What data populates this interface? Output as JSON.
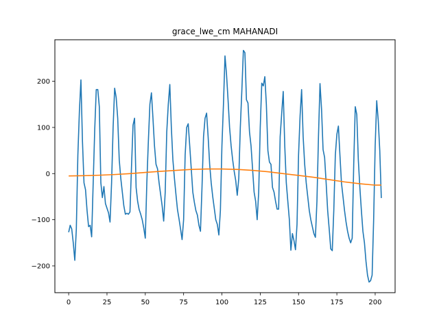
{
  "chart_data": {
    "type": "line",
    "title": "grace_lwe_cm MAHANADI",
    "xlabel": "",
    "ylabel": "",
    "xlim": [
      -9,
      213
    ],
    "ylim": [
      -258,
      290
    ],
    "xticks": [
      0,
      25,
      50,
      75,
      100,
      125,
      150,
      175,
      200
    ],
    "yticks": [
      -200,
      -100,
      0,
      100,
      200
    ],
    "grid": false,
    "legend": "none",
    "series": [
      {
        "color": "#1f77b4",
        "points": [
          [
            0,
            -127
          ],
          [
            1,
            -112
          ],
          [
            2,
            -120
          ],
          [
            3,
            -150
          ],
          [
            4,
            -188
          ],
          [
            5,
            -120
          ],
          [
            6,
            40
          ],
          [
            7,
            135
          ],
          [
            8,
            203
          ],
          [
            9,
            70
          ],
          [
            10,
            -20
          ],
          [
            11,
            -35
          ],
          [
            12,
            -80
          ],
          [
            13,
            -115
          ],
          [
            14,
            -112
          ],
          [
            15,
            -137
          ],
          [
            16,
            -20
          ],
          [
            17,
            95
          ],
          [
            18,
            182
          ],
          [
            19,
            182
          ],
          [
            20,
            145
          ],
          [
            21,
            -20
          ],
          [
            22,
            -52
          ],
          [
            23,
            -28
          ],
          [
            24,
            -65
          ],
          [
            25,
            -75
          ],
          [
            26,
            -85
          ],
          [
            27,
            -105
          ],
          [
            28,
            -20
          ],
          [
            29,
            100
          ],
          [
            30,
            185
          ],
          [
            31,
            165
          ],
          [
            32,
            120
          ],
          [
            33,
            30
          ],
          [
            34,
            -10
          ],
          [
            35,
            -40
          ],
          [
            36,
            -70
          ],
          [
            37,
            -88
          ],
          [
            38,
            -86
          ],
          [
            39,
            -88
          ],
          [
            40,
            -83
          ],
          [
            41,
            15
          ],
          [
            42,
            105
          ],
          [
            43,
            120
          ],
          [
            44,
            -30
          ],
          [
            45,
            -60
          ],
          [
            46,
            -78
          ],
          [
            47,
            -88
          ],
          [
            48,
            -100
          ],
          [
            49,
            -118
          ],
          [
            50,
            -140
          ],
          [
            51,
            -20
          ],
          [
            52,
            70
          ],
          [
            53,
            150
          ],
          [
            54,
            175
          ],
          [
            55,
            120
          ],
          [
            56,
            60
          ],
          [
            57,
            20
          ],
          [
            58,
            10
          ],
          [
            59,
            -20
          ],
          [
            60,
            -45
          ],
          [
            61,
            -70
          ],
          [
            62,
            -103
          ],
          [
            63,
            -40
          ],
          [
            64,
            90
          ],
          [
            65,
            150
          ],
          [
            66,
            193
          ],
          [
            67,
            100
          ],
          [
            68,
            30
          ],
          [
            69,
            -10
          ],
          [
            70,
            -45
          ],
          [
            71,
            -78
          ],
          [
            72,
            -98
          ],
          [
            73,
            -120
          ],
          [
            74,
            -143
          ],
          [
            75,
            -100
          ],
          [
            76,
            40
          ],
          [
            77,
            100
          ],
          [
            78,
            108
          ],
          [
            79,
            60
          ],
          [
            80,
            10
          ],
          [
            81,
            -40
          ],
          [
            82,
            -62
          ],
          [
            83,
            -80
          ],
          [
            84,
            -90
          ],
          [
            85,
            -112
          ],
          [
            86,
            -125
          ],
          [
            87,
            -30
          ],
          [
            88,
            80
          ],
          [
            89,
            120
          ],
          [
            90,
            131
          ],
          [
            91,
            80
          ],
          [
            92,
            20
          ],
          [
            93,
            -20
          ],
          [
            94,
            -50
          ],
          [
            95,
            -75
          ],
          [
            96,
            -100
          ],
          [
            97,
            -110
          ],
          [
            98,
            -133
          ],
          [
            99,
            -80
          ],
          [
            100,
            60
          ],
          [
            101,
            150
          ],
          [
            102,
            255
          ],
          [
            103,
            215
          ],
          [
            104,
            160
          ],
          [
            105,
            100
          ],
          [
            106,
            60
          ],
          [
            107,
            30
          ],
          [
            108,
            5
          ],
          [
            109,
            -15
          ],
          [
            110,
            -47
          ],
          [
            111,
            -10
          ],
          [
            112,
            100
          ],
          [
            113,
            180
          ],
          [
            114,
            267
          ],
          [
            115,
            262
          ],
          [
            116,
            160
          ],
          [
            117,
            153
          ],
          [
            118,
            90
          ],
          [
            119,
            60
          ],
          [
            120,
            10
          ],
          [
            121,
            -40
          ],
          [
            122,
            -60
          ],
          [
            123,
            -100
          ],
          [
            124,
            -40
          ],
          [
            125,
            100
          ],
          [
            126,
            196
          ],
          [
            127,
            190
          ],
          [
            128,
            210
          ],
          [
            129,
            150
          ],
          [
            130,
            50
          ],
          [
            131,
            25
          ],
          [
            132,
            20
          ],
          [
            133,
            -30
          ],
          [
            134,
            -40
          ],
          [
            135,
            -60
          ],
          [
            136,
            -77
          ],
          [
            137,
            -77
          ],
          [
            138,
            80
          ],
          [
            139,
            130
          ],
          [
            140,
            178
          ],
          [
            141,
            60
          ],
          [
            142,
            -20
          ],
          [
            143,
            -60
          ],
          [
            144,
            -100
          ],
          [
            145,
            -166
          ],
          [
            146,
            -130
          ],
          [
            147,
            -145
          ],
          [
            148,
            -165
          ],
          [
            149,
            -110
          ],
          [
            150,
            40
          ],
          [
            151,
            125
          ],
          [
            152,
            182
          ],
          [
            153,
            80
          ],
          [
            154,
            20
          ],
          [
            155,
            -20
          ],
          [
            156,
            -50
          ],
          [
            157,
            -80
          ],
          [
            158,
            -100
          ],
          [
            159,
            -115
          ],
          [
            160,
            -130
          ],
          [
            161,
            -138
          ],
          [
            162,
            -60
          ],
          [
            163,
            80
          ],
          [
            164,
            195
          ],
          [
            165,
            140
          ],
          [
            166,
            52
          ],
          [
            167,
            35
          ],
          [
            168,
            -20
          ],
          [
            169,
            -80
          ],
          [
            170,
            -120
          ],
          [
            171,
            -163
          ],
          [
            172,
            -167
          ],
          [
            173,
            -80
          ],
          [
            174,
            40
          ],
          [
            175,
            85
          ],
          [
            176,
            103
          ],
          [
            177,
            40
          ],
          [
            178,
            -20
          ],
          [
            179,
            -50
          ],
          [
            180,
            -80
          ],
          [
            181,
            -105
          ],
          [
            182,
            -125
          ],
          [
            183,
            -140
          ],
          [
            184,
            -150
          ],
          [
            185,
            -140
          ],
          [
            186,
            20
          ],
          [
            187,
            145
          ],
          [
            188,
            128
          ],
          [
            189,
            30
          ],
          [
            190,
            -30
          ],
          [
            191,
            -80
          ],
          [
            192,
            -125
          ],
          [
            193,
            -150
          ],
          [
            194,
            -190
          ],
          [
            195,
            -220
          ],
          [
            196,
            -235
          ],
          [
            197,
            -232
          ],
          [
            198,
            -220
          ],
          [
            199,
            -100
          ],
          [
            200,
            60
          ],
          [
            201,
            158
          ],
          [
            202,
            115
          ],
          [
            203,
            50
          ],
          [
            204,
            -53
          ]
        ]
      },
      {
        "color": "#ff7f0e",
        "points": [
          [
            0,
            -5
          ],
          [
            10,
            -4.5
          ],
          [
            20,
            -3.5
          ],
          [
            30,
            -2
          ],
          [
            40,
            0
          ],
          [
            50,
            2.5
          ],
          [
            60,
            5
          ],
          [
            70,
            7
          ],
          [
            80,
            9
          ],
          [
            90,
            10
          ],
          [
            100,
            10
          ],
          [
            110,
            9
          ],
          [
            120,
            7
          ],
          [
            130,
            4
          ],
          [
            140,
            0
          ],
          [
            150,
            -4
          ],
          [
            160,
            -8
          ],
          [
            170,
            -13
          ],
          [
            180,
            -18
          ],
          [
            190,
            -22
          ],
          [
            200,
            -25
          ],
          [
            204,
            -25
          ]
        ]
      }
    ]
  }
}
